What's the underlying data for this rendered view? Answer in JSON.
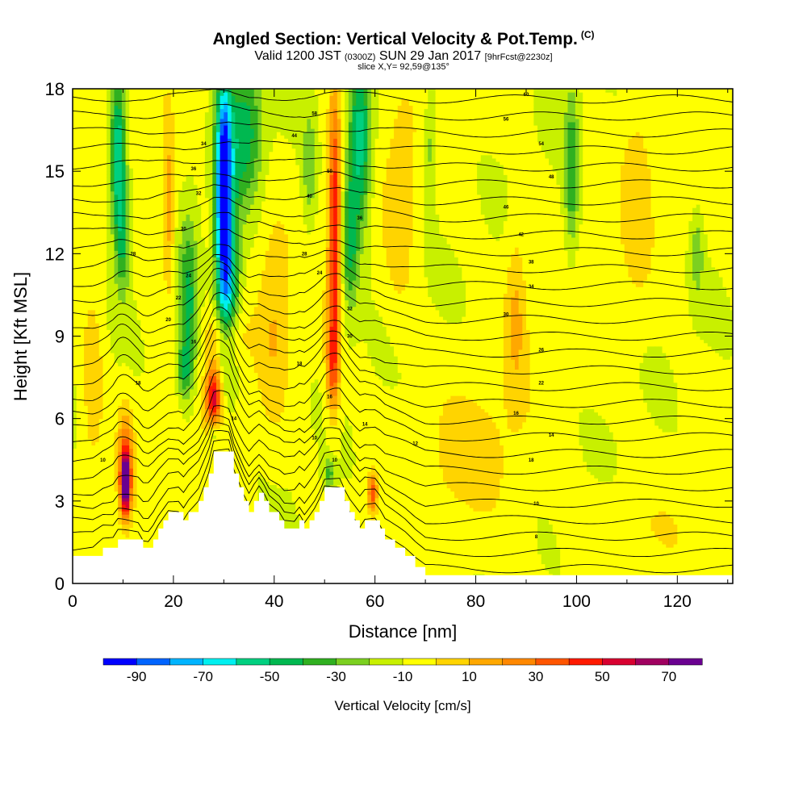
{
  "title": {
    "main": "Angled Section: Vertical Velocity & Pot.Temp.",
    "tag": "(C)",
    "valid_prefix": "Valid 1200 JST",
    "valid_small": "(0300Z)",
    "valid_date": "SUN 29 Jan 2017",
    "forecast": "[9hrFcst@2230z]",
    "slice": "slice X,Y= 92,59@135°"
  },
  "chart_data": {
    "type": "heatmap",
    "xlabel": "Distance [nm]",
    "ylabel": "Height [Kft MSL]",
    "xlim": [
      0,
      131
    ],
    "ylim": [
      0,
      18
    ],
    "x_ticks": [
      "0",
      "20",
      "40",
      "60",
      "80",
      "100",
      "120"
    ],
    "y_ticks": [
      "0",
      "3",
      "6",
      "9",
      "12",
      "15",
      "18"
    ],
    "x_tick_values": [
      0,
      20,
      40,
      60,
      80,
      100,
      120
    ],
    "y_tick_values": [
      0,
      3,
      6,
      9,
      12,
      15,
      18
    ],
    "colorbar": {
      "label": "Vertical Velocity [cm/s]",
      "levels": [
        -90,
        -80,
        -70,
        -60,
        -50,
        -40,
        -30,
        -20,
        -10,
        0,
        10,
        20,
        30,
        40,
        50,
        60,
        70,
        80
      ],
      "tick_labels": [
        "-90",
        "-70",
        "-50",
        "-30",
        "-10",
        "10",
        "30",
        "50",
        "70"
      ],
      "tick_values": [
        -90,
        -70,
        -50,
        -30,
        -10,
        10,
        30,
        50,
        70
      ],
      "colors": [
        "#0000ff",
        "#0064ff",
        "#00b4ff",
        "#00f0f0",
        "#00d080",
        "#00b850",
        "#30b020",
        "#7cd020",
        "#c8f000",
        "#ffff00",
        "#ffd400",
        "#ffa800",
        "#ff8800",
        "#ff5500",
        "#ff1a00",
        "#d80030",
        "#a00060",
        "#6a0090"
      ]
    },
    "terrain": [
      [
        0,
        1.0
      ],
      [
        4,
        1.0
      ],
      [
        6,
        1.3
      ],
      [
        8,
        1.3
      ],
      [
        9,
        1.6
      ],
      [
        13,
        1.6
      ],
      [
        14,
        1.3
      ],
      [
        15,
        1.3
      ],
      [
        16,
        1.6
      ],
      [
        17,
        2.0
      ],
      [
        18,
        2.3
      ],
      [
        19,
        2.6
      ],
      [
        21,
        2.6
      ],
      [
        22,
        2.3
      ],
      [
        23,
        2.6
      ],
      [
        25,
        3.0
      ],
      [
        26,
        3.5
      ],
      [
        27,
        4.0
      ],
      [
        28,
        4.8
      ],
      [
        31,
        4.8
      ],
      [
        32,
        4.0
      ],
      [
        33,
        3.5
      ],
      [
        34,
        3.0
      ],
      [
        35,
        2.6
      ],
      [
        36,
        3.0
      ],
      [
        37,
        3.3
      ],
      [
        38,
        3.0
      ],
      [
        39,
        2.6
      ],
      [
        41,
        2.3
      ],
      [
        42,
        2.0
      ],
      [
        44,
        2.0
      ],
      [
        45,
        2.3
      ],
      [
        46,
        2.0
      ],
      [
        47,
        2.3
      ],
      [
        48,
        2.6
      ],
      [
        49,
        3.0
      ],
      [
        50,
        3.5
      ],
      [
        53,
        3.5
      ],
      [
        54,
        3.0
      ],
      [
        55,
        2.6
      ],
      [
        56,
        2.3
      ],
      [
        57,
        2.0
      ],
      [
        58,
        2.3
      ],
      [
        60,
        2.3
      ],
      [
        61,
        2.0
      ],
      [
        62,
        1.6
      ],
      [
        64,
        1.3
      ],
      [
        66,
        1.0
      ],
      [
        68,
        0.6
      ],
      [
        70,
        0.3
      ],
      [
        131,
        0.3
      ]
    ],
    "velocity_features": [
      {
        "x": 30,
        "y": 14.5,
        "sx": 1.6,
        "sy": 4.2,
        "v": -90
      },
      {
        "x": 31,
        "y": 11.0,
        "sx": 2.2,
        "sy": 3.0,
        "v": -45
      },
      {
        "x": 34,
        "y": 16.5,
        "sx": 3.5,
        "sy": 2.5,
        "v": -40
      },
      {
        "x": 23,
        "y": 10.0,
        "sx": 1.8,
        "sy": 3.2,
        "v": -35
      },
      {
        "x": 22,
        "y": 7.8,
        "sx": 1.5,
        "sy": 1.0,
        "v": -25
      },
      {
        "x": 9,
        "y": 15.5,
        "sx": 1.5,
        "sy": 2.8,
        "v": -55
      },
      {
        "x": 10,
        "y": 12.5,
        "sx": 1.4,
        "sy": 2.0,
        "v": -30
      },
      {
        "x": 57,
        "y": 16.0,
        "sx": 2.2,
        "sy": 3.2,
        "v": -50
      },
      {
        "x": 55,
        "y": 12.5,
        "sx": 1.6,
        "sy": 2.5,
        "v": -35
      },
      {
        "x": 47,
        "y": 15.0,
        "sx": 1.4,
        "sy": 2.2,
        "v": -20
      },
      {
        "x": 71,
        "y": 16.0,
        "sx": 1.2,
        "sy": 2.5,
        "v": -18
      },
      {
        "x": 99,
        "y": 15.0,
        "sx": 1.4,
        "sy": 3.0,
        "v": -30
      },
      {
        "x": 124,
        "y": 12.0,
        "sx": 1.2,
        "sy": 1.6,
        "v": -18
      },
      {
        "x": 51,
        "y": 4.0,
        "sx": 1.2,
        "sy": 0.6,
        "v": -25
      },
      {
        "x": 28,
        "y": 5.5,
        "sx": 1.0,
        "sy": 0.5,
        "v": -20
      },
      {
        "x": 52,
        "y": 13.0,
        "sx": 1.2,
        "sy": 5.0,
        "v": 55
      },
      {
        "x": 51.5,
        "y": 8.0,
        "sx": 1.3,
        "sy": 1.8,
        "v": 35
      },
      {
        "x": 28,
        "y": 6.8,
        "sx": 1.5,
        "sy": 1.1,
        "v": 62
      },
      {
        "x": 30,
        "y": 9.0,
        "sx": 3.5,
        "sy": 1.0,
        "v": 25
      },
      {
        "x": 10.5,
        "y": 3.6,
        "sx": 0.9,
        "sy": 1.0,
        "v": 85
      },
      {
        "x": 10.5,
        "y": 4.5,
        "sx": 1.4,
        "sy": 1.8,
        "v": 40
      },
      {
        "x": 59.5,
        "y": 3.3,
        "sx": 0.9,
        "sy": 0.7,
        "v": 45
      },
      {
        "x": 19,
        "y": 13.5,
        "sx": 1.2,
        "sy": 3.0,
        "v": 25
      },
      {
        "x": 4,
        "y": 7.5,
        "sx": 2.0,
        "sy": 3.0,
        "v": 18
      },
      {
        "x": 40,
        "y": 9.5,
        "sx": 3.0,
        "sy": 4.0,
        "v": 15
      },
      {
        "x": 65,
        "y": 13.5,
        "sx": 3.0,
        "sy": 3.5,
        "v": 15
      },
      {
        "x": 88,
        "y": 10.0,
        "sx": 2.0,
        "sy": 3.0,
        "v": 18
      },
      {
        "x": 112,
        "y": 14.0,
        "sx": 3.0,
        "sy": 4.0,
        "v": 12
      },
      {
        "x": 80,
        "y": 4.5,
        "sx": 12.0,
        "sy": 3.0,
        "v": 8
      },
      {
        "x": 110,
        "y": 2.0,
        "sx": 10.0,
        "sy": 1.5,
        "v": 6
      }
    ],
    "isentropes": {
      "levels": [
        4,
        6,
        8,
        10,
        12,
        14,
        16,
        18,
        20,
        22,
        24,
        26,
        28,
        30,
        32,
        34,
        36,
        38,
        40,
        42,
        44,
        46,
        48,
        50,
        52,
        54,
        56,
        58,
        60
      ],
      "labels": [
        {
          "text": "10",
          "x": 6,
          "y": 4.5
        },
        {
          "text": "18",
          "x": 13,
          "y": 7.3
        },
        {
          "text": "14",
          "x": 32,
          "y": 6.0
        },
        {
          "text": "16",
          "x": 24,
          "y": 8.8
        },
        {
          "text": "20",
          "x": 19,
          "y": 9.6
        },
        {
          "text": "22",
          "x": 21,
          "y": 10.4
        },
        {
          "text": "24",
          "x": 23,
          "y": 11.2
        },
        {
          "text": "28",
          "x": 12,
          "y": 12.0
        },
        {
          "text": "30",
          "x": 22,
          "y": 12.9
        },
        {
          "text": "32",
          "x": 25,
          "y": 14.2
        },
        {
          "text": "36",
          "x": 24,
          "y": 15.1
        },
        {
          "text": "34",
          "x": 26,
          "y": 16.0
        },
        {
          "text": "18",
          "x": 45,
          "y": 8.0
        },
        {
          "text": "16",
          "x": 51,
          "y": 6.8
        },
        {
          "text": "10",
          "x": 48,
          "y": 5.3
        },
        {
          "text": "10",
          "x": 52,
          "y": 4.5
        },
        {
          "text": "14",
          "x": 58,
          "y": 5.8
        },
        {
          "text": "24",
          "x": 49,
          "y": 11.3
        },
        {
          "text": "28",
          "x": 46,
          "y": 12.0
        },
        {
          "text": "30",
          "x": 55,
          "y": 9.0
        },
        {
          "text": "32",
          "x": 55,
          "y": 10.0
        },
        {
          "text": "36",
          "x": 57,
          "y": 13.3
        },
        {
          "text": "40",
          "x": 47,
          "y": 14.1
        },
        {
          "text": "44",
          "x": 44,
          "y": 16.3
        },
        {
          "text": "50",
          "x": 51,
          "y": 15.0
        },
        {
          "text": "58",
          "x": 48,
          "y": 17.1
        },
        {
          "text": "12",
          "x": 68,
          "y": 5.1
        },
        {
          "text": "16",
          "x": 88,
          "y": 6.2
        },
        {
          "text": "14",
          "x": 95,
          "y": 5.4
        },
        {
          "text": "18",
          "x": 91,
          "y": 4.5
        },
        {
          "text": "10",
          "x": 92,
          "y": 2.9
        },
        {
          "text": "8",
          "x": 92,
          "y": 1.7
        },
        {
          "text": "22",
          "x": 93,
          "y": 7.3
        },
        {
          "text": "26",
          "x": 93,
          "y": 8.5
        },
        {
          "text": "30",
          "x": 86,
          "y": 9.8
        },
        {
          "text": "34",
          "x": 91,
          "y": 10.8
        },
        {
          "text": "38",
          "x": 91,
          "y": 11.7
        },
        {
          "text": "42",
          "x": 89,
          "y": 12.7
        },
        {
          "text": "46",
          "x": 86,
          "y": 13.7
        },
        {
          "text": "48",
          "x": 95,
          "y": 14.8
        },
        {
          "text": "54",
          "x": 93,
          "y": 16.0
        },
        {
          "text": "56",
          "x": 86,
          "y": 16.9
        },
        {
          "text": "60",
          "x": 90,
          "y": 17.8
        }
      ]
    }
  }
}
